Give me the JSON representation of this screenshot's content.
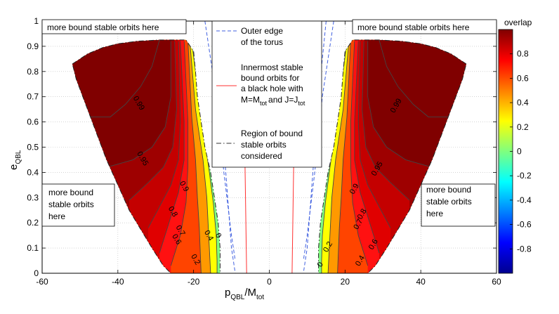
{
  "chart_data": {
    "type": "filled-contour",
    "xlabel": "p_QBL/M_tot",
    "xlabel_main": "p",
    "xlabel_sub": "QBL",
    "xlabel_main2": "/M",
    "xlabel_sub2": "tot",
    "ylabel_main": "e",
    "ylabel_sub": "QBL",
    "xlim": [
      -60,
      60
    ],
    "ylim": [
      0,
      1
    ],
    "xticks": [
      -60,
      -40,
      -20,
      0,
      20,
      40,
      60
    ],
    "yticks": [
      0,
      0.1,
      0.2,
      0.3,
      0.4,
      0.5,
      0.6,
      0.7,
      0.8,
      0.9,
      1
    ],
    "grid": true,
    "colorbar": {
      "title": "overlap",
      "range": [
        -1,
        1
      ],
      "ticks": [
        0.8,
        0.6,
        0.4,
        0.2,
        0,
        -0.2,
        -0.4,
        -0.6,
        -0.8
      ]
    },
    "contour_levels": [
      0,
      0.2,
      0.4,
      0.6,
      0.7,
      0.8,
      0.9,
      0.95,
      0.99
    ],
    "band_colors": [
      "#7fff7f",
      "#ffff00",
      "#ff9900",
      "#ff4400",
      "#ff1111",
      "#e00000",
      "#c40000",
      "#9e0000",
      "#800000"
    ],
    "left_region": {
      "boundary": [
        [
          -52,
          0.83
        ],
        [
          -48,
          0.87
        ],
        [
          -44,
          0.895
        ],
        [
          -40,
          0.91
        ],
        [
          -35,
          0.92
        ],
        [
          -29,
          0.925
        ],
        [
          -22,
          0.925
        ],
        [
          -20,
          0.88
        ],
        [
          -19.5,
          0.8
        ],
        [
          -19,
          0.7
        ],
        [
          -18,
          0.6
        ],
        [
          -17,
          0.5
        ],
        [
          -15.5,
          0.4
        ],
        [
          -14.5,
          0.3
        ],
        [
          -13.5,
          0.2
        ],
        [
          -13,
          0.1
        ],
        [
          -13,
          0
        ],
        [
          -26,
          0
        ],
        [
          -28,
          0.03
        ],
        [
          -31,
          0.1
        ],
        [
          -37,
          0.25
        ],
        [
          -43,
          0.45
        ],
        [
          -48,
          0.65
        ],
        [
          -51,
          0.77
        ]
      ],
      "contours": [
        {
          "level": 0,
          "points": [
            [
              -20.5,
              0.92
            ],
            [
              -18,
              0.62
            ],
            [
              -16,
              0.42
            ],
            [
              -14.8,
              0.28
            ],
            [
              -14,
              0.15
            ],
            [
              -13.8,
              0.05
            ],
            [
              -13.8,
              0
            ]
          ]
        },
        {
          "level": 0.2,
          "points": [
            [
              -21,
              0.92
            ],
            [
              -19.5,
              0.65
            ],
            [
              -17.5,
              0.45
            ],
            [
              -16.5,
              0.3
            ],
            [
              -16,
              0.15
            ],
            [
              -15.5,
              0
            ]
          ]
        },
        {
          "level": 0.4,
          "points": [
            [
              -21.5,
              0.92
            ],
            [
              -20.5,
              0.62
            ],
            [
              -19.5,
              0.45
            ],
            [
              -19,
              0.3
            ],
            [
              -18.5,
              0.18
            ],
            [
              -18,
              0
            ]
          ]
        },
        {
          "level": 0.6,
          "points": [
            [
              -22.5,
              0.92
            ],
            [
              -21.5,
              0.6
            ],
            [
              -21.5,
              0.42
            ],
            [
              -22,
              0.28
            ],
            [
              -23.5,
              0.15
            ],
            [
              -26,
              0.03
            ]
          ]
        },
        {
          "level": 0.7,
          "points": [
            [
              -23.5,
              0.92
            ],
            [
              -22.5,
              0.6
            ],
            [
              -22.5,
              0.45
            ],
            [
              -24,
              0.32
            ],
            [
              -26.5,
              0.2
            ],
            [
              -29,
              0.08
            ]
          ]
        },
        {
          "level": 0.8,
          "points": [
            [
              -24,
              0.92
            ],
            [
              -23.5,
              0.6
            ],
            [
              -24,
              0.45
            ],
            [
              -26,
              0.35
            ],
            [
              -29.5,
              0.25
            ],
            [
              -32,
              0.18
            ]
          ]
        },
        {
          "level": 0.9,
          "points": [
            [
              -25,
              0.92
            ],
            [
              -24.5,
              0.65
            ],
            [
              -25.5,
              0.5
            ],
            [
              -28,
              0.42
            ],
            [
              -32,
              0.36
            ],
            [
              -37,
              0.29
            ]
          ]
        },
        {
          "level": 0.95,
          "points": [
            [
              -26,
              0.92
            ],
            [
              -26,
              0.7
            ],
            [
              -27.5,
              0.58
            ],
            [
              -31,
              0.5
            ],
            [
              -36,
              0.45
            ],
            [
              -43,
              0.42
            ]
          ]
        },
        {
          "level": 0.99,
          "points": [
            [
              -29,
              0.925
            ],
            [
              -31,
              0.82
            ],
            [
              -34,
              0.74
            ],
            [
              -38,
              0.67
            ],
            [
              -42,
              0.62
            ],
            [
              -48,
              0.62
            ]
          ]
        }
      ],
      "labels": [
        {
          "text": "0.99",
          "at": [
            -35,
            0.67
          ]
        },
        {
          "text": "0.95",
          "at": [
            -34,
            0.45
          ]
        },
        {
          "text": "0.9",
          "at": [
            -23,
            0.34
          ]
        },
        {
          "text": "0.8",
          "at": [
            -26,
            0.24
          ]
        },
        {
          "text": "0.7",
          "at": [
            -24,
            0.165
          ]
        },
        {
          "text": "0.6",
          "at": [
            -25,
            0.13
          ]
        },
        {
          "text": "0.4",
          "at": [
            -16.5,
            0.145
          ]
        },
        {
          "text": "0",
          "at": [
            -14,
            0.145
          ]
        },
        {
          "text": "0.2",
          "at": [
            -20,
            0.05
          ]
        }
      ]
    },
    "right_region": {
      "boundary": [
        [
          52,
          0.83
        ],
        [
          48,
          0.87
        ],
        [
          44,
          0.895
        ],
        [
          40,
          0.91
        ],
        [
          35,
          0.92
        ],
        [
          29,
          0.925
        ],
        [
          22,
          0.925
        ],
        [
          20,
          0.88
        ],
        [
          19.5,
          0.8
        ],
        [
          19,
          0.7
        ],
        [
          18,
          0.6
        ],
        [
          17,
          0.5
        ],
        [
          15.5,
          0.4
        ],
        [
          14.5,
          0.3
        ],
        [
          13.5,
          0.2
        ],
        [
          13,
          0.1
        ],
        [
          13,
          0
        ],
        [
          26,
          0
        ],
        [
          28,
          0.03
        ],
        [
          31,
          0.1
        ],
        [
          37,
          0.25
        ],
        [
          43,
          0.45
        ],
        [
          48,
          0.65
        ],
        [
          51,
          0.77
        ]
      ],
      "contours": [
        {
          "level": 0,
          "points": [
            [
              20.5,
              0.92
            ],
            [
              18,
              0.62
            ],
            [
              16,
              0.42
            ],
            [
              14.8,
              0.28
            ],
            [
              14,
              0.15
            ],
            [
              13.8,
              0.05
            ],
            [
              13.8,
              0
            ]
          ]
        },
        {
          "level": 0.2,
          "points": [
            [
              21,
              0.92
            ],
            [
              19.5,
              0.65
            ],
            [
              17.5,
              0.45
            ],
            [
              16.5,
              0.3
            ],
            [
              16,
              0.15
            ],
            [
              15.5,
              0
            ]
          ]
        },
        {
          "level": 0.4,
          "points": [
            [
              21.5,
              0.92
            ],
            [
              20.5,
              0.62
            ],
            [
              19.5,
              0.45
            ],
            [
              19,
              0.3
            ],
            [
              18.5,
              0.18
            ],
            [
              18,
              0
            ]
          ]
        },
        {
          "level": 0.6,
          "points": [
            [
              22.5,
              0.92
            ],
            [
              21.5,
              0.6
            ],
            [
              21.5,
              0.42
            ],
            [
              22,
              0.28
            ],
            [
              23.5,
              0.15
            ],
            [
              26,
              0.03
            ]
          ]
        },
        {
          "level": 0.7,
          "points": [
            [
              23.5,
              0.92
            ],
            [
              22.5,
              0.6
            ],
            [
              22.5,
              0.45
            ],
            [
              24,
              0.32
            ],
            [
              26.5,
              0.2
            ],
            [
              29,
              0.08
            ]
          ]
        },
        {
          "level": 0.8,
          "points": [
            [
              24,
              0.92
            ],
            [
              23.5,
              0.6
            ],
            [
              24,
              0.45
            ],
            [
              26,
              0.35
            ],
            [
              29.5,
              0.25
            ],
            [
              32,
              0.18
            ]
          ]
        },
        {
          "level": 0.9,
          "points": [
            [
              25,
              0.92
            ],
            [
              24.5,
              0.65
            ],
            [
              25.5,
              0.5
            ],
            [
              28,
              0.42
            ],
            [
              32,
              0.36
            ],
            [
              37,
              0.29
            ]
          ]
        },
        {
          "level": 0.95,
          "points": [
            [
              26,
              0.92
            ],
            [
              26,
              0.7
            ],
            [
              27.5,
              0.58
            ],
            [
              31,
              0.5
            ],
            [
              36,
              0.45
            ],
            [
              43,
              0.42
            ]
          ]
        },
        {
          "level": 0.99,
          "points": [
            [
              29,
              0.925
            ],
            [
              31,
              0.82
            ],
            [
              34,
              0.74
            ],
            [
              38,
              0.67
            ],
            [
              42,
              0.62
            ],
            [
              48,
              0.62
            ]
          ]
        }
      ],
      "labels": [
        {
          "text": "0.99",
          "at": [
            34,
            0.66
          ]
        },
        {
          "text": "0.95",
          "at": [
            29,
            0.41
          ]
        },
        {
          "text": "0.9",
          "at": [
            23,
            0.33
          ]
        },
        {
          "text": "0.8",
          "at": [
            25,
            0.23
          ]
        },
        {
          "text": "0.7",
          "at": [
            24,
            0.19
          ]
        },
        {
          "text": "0.6",
          "at": [
            28,
            0.11
          ]
        },
        {
          "text": "0.4",
          "at": [
            24.5,
            0.045
          ]
        },
        {
          "text": "0.2",
          "at": [
            16,
            0.1
          ]
        },
        {
          "text": "0",
          "at": [
            14,
            0.03
          ]
        }
      ]
    },
    "torus_outer_edge": {
      "left": [
        [
          -15,
          1
        ],
        [
          -13,
          0.7
        ],
        [
          -11.5,
          0.4
        ],
        [
          -10,
          0.1
        ],
        [
          -9,
          0
        ]
      ],
      "right": [
        [
          15,
          1
        ],
        [
          13,
          0.7
        ],
        [
          11.5,
          0.4
        ],
        [
          10,
          0.1
        ],
        [
          9,
          0
        ]
      ],
      "left2": [
        [
          -17,
          1
        ],
        [
          -14,
          0.7
        ],
        [
          -12,
          0.4
        ],
        [
          -10,
          0.15
        ],
        [
          -9,
          0.05
        ]
      ],
      "right2": [
        [
          17,
          1
        ],
        [
          14,
          0.7
        ],
        [
          12,
          0.4
        ],
        [
          10,
          0.15
        ],
        [
          9,
          0.05
        ]
      ]
    },
    "isco_lines": {
      "left": [
        [
          -7,
          1
        ],
        [
          -6,
          0
        ]
      ],
      "right": [
        [
          7,
          1
        ],
        [
          6,
          0
        ]
      ]
    },
    "legend": [
      {
        "style": "blue-dashed",
        "lines": [
          "Outer edge",
          "of the torus"
        ]
      },
      {
        "style": "red-solid",
        "lines": [
          "Innermost stable",
          "bound orbits for",
          "a black hole with",
          "M=M",
          "and J=J"
        ],
        "subs": [
          "tot",
          "tot"
        ]
      },
      {
        "style": "black-dashdot",
        "lines": [
          "Region of bound",
          "stable orbits",
          "considered"
        ]
      }
    ],
    "annotations": [
      {
        "id": "top-left",
        "lines": [
          "more bound stable orbits here"
        ]
      },
      {
        "id": "top-right",
        "lines": [
          "more bound stable orbits here"
        ]
      },
      {
        "id": "mid-left",
        "lines": [
          "more bound",
          "stable orbits",
          "here"
        ]
      },
      {
        "id": "mid-right",
        "lines": [
          "more bound",
          "stable orbits",
          "here"
        ]
      }
    ]
  }
}
